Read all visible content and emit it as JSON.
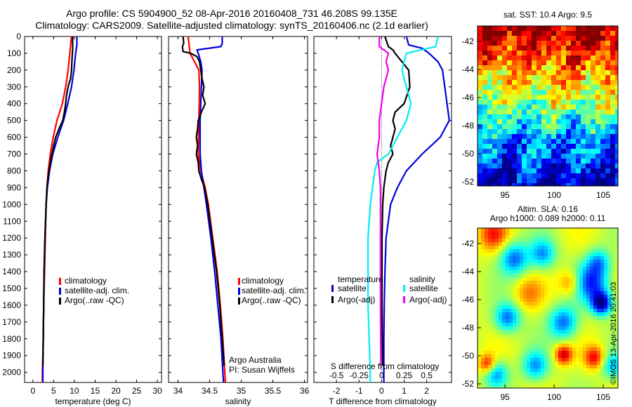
{
  "title": {
    "line1": "Argo profile: CS 5904900_52 08-Apr-2016 20160408_731 46.208S 99.135E",
    "line2": "Climatology: CARS2009. Satellite-adjusted climatology: synTS_20160406.nc (2.1d earlier)"
  },
  "colors": {
    "climatology": "#ff0000",
    "satellite": "#0000dd",
    "argo": "#000000",
    "sat_salinity": "#00eeee",
    "argo_salinity_diff": "#ee00ee"
  },
  "legend": {
    "climatology": "climatology",
    "satellite_adj": "satellite-adj. clim.",
    "argo": "Argo(..raw -QC)"
  },
  "diff_legend": {
    "temperature_head": "temperature",
    "salinity_head": "salinity",
    "satellite": "satellite",
    "argo_adj": "Argo(-adj)"
  },
  "annotation": {
    "line1": "Argo Australia",
    "line2": "PI: Susan Wijffels"
  },
  "s_diff_label": "S difference from climatology",
  "maps": {
    "sst_title": "sat. SST: 10.4  Argo: 9.5",
    "sla_title1": "Altim. SLA: 0.16",
    "sla_title2": "Argo h1000: 0.089  h2000: 0.11",
    "x_ticks": [
      "95",
      "100",
      "105"
    ],
    "y_ticks": [
      "-42",
      "-44",
      "-46",
      "-48",
      "-50",
      "-52"
    ]
  },
  "credit": "©IMOS 13-Apr-2016 20:41:03",
  "chart_data": [
    {
      "type": "line",
      "xlabel": "temperature (deg C)",
      "ylabel": "",
      "xlim": [
        -2,
        31
      ],
      "ylim": [
        2060,
        0
      ],
      "x_ticks": [
        "0",
        "5",
        "10",
        "15",
        "20",
        "25",
        "30"
      ],
      "y_ticks": [
        "0",
        "100",
        "200",
        "300",
        "400",
        "500",
        "600",
        "700",
        "800",
        "900",
        "1000",
        "1100",
        "1200",
        "1300",
        "1400",
        "1500",
        "1600",
        "1700",
        "1800",
        "1900",
        "2000"
      ],
      "series": [
        {
          "name": "climatology",
          "depth": [
            0,
            100,
            200,
            300,
            400,
            500,
            600,
            700,
            800,
            900,
            1000,
            1200,
            1400,
            1600,
            1800,
            2000,
            2060
          ],
          "values": [
            9.3,
            8.9,
            8.5,
            7.9,
            7.1,
            5.8,
            4.9,
            4.2,
            3.7,
            3.4,
            3.2,
            3.0,
            2.8,
            2.6,
            2.5,
            2.3,
            2.3
          ]
        },
        {
          "name": "satellite-adj. clim.",
          "depth": [
            0,
            50,
            100,
            200,
            300,
            400,
            500,
            600,
            700,
            800,
            900,
            1000,
            1200,
            1400,
            1600,
            1800,
            2000,
            2060
          ],
          "values": [
            10.6,
            10.6,
            10.3,
            9.9,
            9.3,
            8.4,
            7.4,
            6.0,
            4.8,
            4.0,
            3.5,
            3.2,
            2.9,
            2.7,
            2.6,
            2.5,
            2.4,
            2.4
          ]
        },
        {
          "name": "Argo(..raw -QC)",
          "depth": [
            0,
            80,
            100,
            150,
            200,
            250,
            280,
            300,
            350,
            400,
            450,
            500,
            550,
            600,
            650,
            700,
            750,
            800,
            850,
            900,
            1000,
            1200,
            1400,
            1600,
            1800,
            1960
          ],
          "values": [
            9.6,
            9.6,
            9.5,
            9.4,
            9.3,
            9.1,
            8.7,
            8.5,
            8.1,
            7.9,
            7.6,
            7.2,
            6.3,
            5.5,
            5.0,
            4.6,
            4.2,
            3.9,
            3.6,
            3.4,
            3.2,
            2.9,
            2.7,
            2.6,
            2.5,
            2.4
          ]
        }
      ]
    },
    {
      "type": "line",
      "xlabel": "salinity",
      "xlim": [
        33.85,
        36.05
      ],
      "ylim": [
        2060,
        0
      ],
      "x_ticks": [
        "34",
        "34.5",
        "35",
        "35.5",
        "36"
      ],
      "series": [
        {
          "name": "climatology",
          "depth": [
            0,
            100,
            150,
            200,
            300,
            500,
            700,
            800,
            900,
            1000,
            1200,
            1400,
            1600,
            1800,
            2000,
            2060
          ],
          "values": [
            34.16,
            34.19,
            34.26,
            34.33,
            34.34,
            34.33,
            34.32,
            34.36,
            34.43,
            34.48,
            34.55,
            34.62,
            34.67,
            34.71,
            34.74,
            34.75
          ]
        },
        {
          "name": "satellite-adj. clim.",
          "depth": [
            0,
            40,
            60,
            80,
            100,
            150,
            200,
            300,
            400,
            500,
            600,
            700,
            800,
            900,
            1000,
            1200,
            1400,
            1600,
            1800,
            2000,
            2060
          ],
          "values": [
            34.7,
            34.7,
            34.68,
            34.3,
            34.32,
            34.36,
            34.38,
            34.37,
            34.36,
            34.35,
            34.35,
            34.35,
            34.37,
            34.41,
            34.45,
            34.52,
            34.58,
            34.63,
            34.68,
            34.71,
            34.72
          ]
        },
        {
          "name": "Argo(..raw -QC)",
          "depth": [
            0,
            40,
            60,
            90,
            100,
            120,
            150,
            200,
            250,
            300,
            350,
            400,
            450,
            500,
            550,
            600,
            650,
            700,
            750,
            800,
            850,
            900,
            1000,
            1200,
            1400,
            1600,
            1800,
            1960
          ],
          "values": [
            34.08,
            34.09,
            34.07,
            34.08,
            34.2,
            34.3,
            34.34,
            34.36,
            34.38,
            34.41,
            34.39,
            34.43,
            34.37,
            34.32,
            34.31,
            34.29,
            34.31,
            34.29,
            34.32,
            34.33,
            34.37,
            34.42,
            34.47,
            34.54,
            34.61,
            34.66,
            34.7,
            34.73
          ]
        }
      ]
    },
    {
      "type": "line",
      "xlabel": "T difference from climatology",
      "x2label": "S difference from climatology",
      "xlim": [
        -3,
        3.1
      ],
      "ylim": [
        2060,
        0
      ],
      "x_ticks": [
        "-2",
        "-1",
        "0",
        "1",
        "2"
      ],
      "x2_ticks": [
        "-0.5",
        "-0.25",
        "0",
        "0.25",
        "0.5"
      ],
      "series": [
        {
          "name": "temperature satellite",
          "depth": [
            0,
            50,
            70,
            100,
            150,
            200,
            300,
            400,
            500,
            600,
            700,
            800,
            900,
            1000,
            1100,
            1200,
            1400,
            1600,
            1800,
            2000,
            2060
          ],
          "values": [
            1.1,
            1.2,
            1.8,
            2.1,
            2.5,
            2.7,
            2.8,
            2.9,
            3.0,
            2.6,
            1.8,
            1.1,
            0.7,
            0.4,
            0.3,
            0.2,
            0.15,
            0.12,
            0.1,
            0.1,
            0.1
          ]
        },
        {
          "name": "temperature Argo(-adj)",
          "depth": [
            0,
            60,
            80,
            100,
            200,
            300,
            400,
            450,
            500,
            550,
            600,
            650,
            700,
            750,
            800,
            900,
            1000,
            1200,
            1400,
            1600,
            1800,
            1960
          ],
          "values": [
            0.15,
            0.3,
            0.5,
            0.6,
            1.2,
            1.25,
            1.0,
            0.6,
            0.5,
            0.6,
            0.5,
            0.4,
            0.5,
            0.3,
            0.2,
            0.1,
            0.05,
            0.02,
            0.02,
            0.02,
            0.03,
            0.05
          ]
        },
        {
          "name": "salinity satellite",
          "depth": [
            0,
            60,
            100,
            150,
            200,
            300,
            400,
            500,
            600,
            700,
            750,
            800,
            900,
            1000,
            1200,
            1400,
            1600,
            1800,
            2000,
            2060
          ],
          "values": [
            2.5,
            2.4,
            1.1,
            1.0,
            0.9,
            1.1,
            1.3,
            1.1,
            0.7,
            0.3,
            -0.2,
            -0.3,
            -0.4,
            -0.5,
            -0.6,
            -0.6,
            -0.6,
            -0.55,
            -0.5,
            -0.5
          ]
        },
        {
          "name": "salinity Argo(-adj)",
          "depth": [
            0,
            60,
            100,
            150,
            200,
            300,
            400,
            500,
            600,
            700,
            800,
            900,
            1000,
            1200,
            1400,
            1600,
            1800,
            1960
          ],
          "values": [
            -0.1,
            -0.1,
            0.3,
            0.2,
            0.3,
            0.1,
            0.0,
            -0.1,
            -0.1,
            -0.2,
            -0.1,
            -0.05,
            -0.05,
            -0.05,
            -0.05,
            -0.05,
            -0.04,
            -0.03
          ]
        }
      ]
    }
  ]
}
